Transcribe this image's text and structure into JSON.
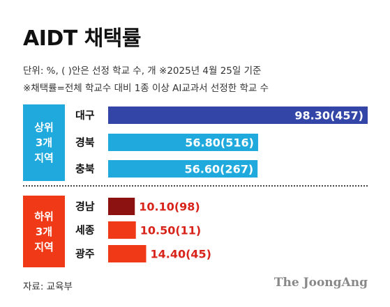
{
  "title": "AIDT 채택률",
  "subtitle_line1": "단위: %, ( )안은 선정 학교 수, 개   ※2025년 4월 25일 기준",
  "subtitle_line2": "※채택률=전체 학교수 대비 1종 이상 AI교과서 선정한 학교 수",
  "groups": [
    {
      "label_lines": [
        "상위",
        "3개",
        "지역"
      ],
      "color": "#1fa9dc"
    },
    {
      "label_lines": [
        "하위",
        "3개",
        "지역"
      ],
      "color": "#f03a17"
    }
  ],
  "source": "자료: 교육부",
  "publisher": "The JoongAng",
  "colors": {
    "top1": "#3346a8",
    "top_others": "#1fa9dc",
    "bottom1": "#8c1111",
    "bottom_others": "#f03a17"
  },
  "chart_data": {
    "type": "bar",
    "orientation": "horizontal",
    "xlim": [
      0,
      98.3
    ],
    "categories": [
      "대구",
      "경북",
      "충북",
      "경남",
      "세종",
      "광주"
    ],
    "values": [
      98.3,
      56.8,
      56.6,
      10.1,
      10.5,
      14.4
    ],
    "value_labels": [
      "98.30(457)",
      "56.80(516)",
      "56.60(267)",
      "10.10(98)",
      "10.50(11)",
      "14.40(45)"
    ],
    "school_counts": [
      457,
      516,
      267,
      98,
      11,
      45
    ],
    "group": [
      "top",
      "top",
      "top",
      "bottom",
      "bottom",
      "bottom"
    ],
    "bar_colors": [
      "#3346a8",
      "#1fa9dc",
      "#1fa9dc",
      "#8c1111",
      "#f03a17",
      "#f03a17"
    ],
    "label_colors": [
      "#ffffff",
      "#ffffff",
      "#ffffff",
      "#d8231a",
      "#d8231a",
      "#d8231a"
    ],
    "label_position": [
      "inside",
      "inside",
      "inside",
      "outside",
      "outside",
      "outside"
    ]
  }
}
